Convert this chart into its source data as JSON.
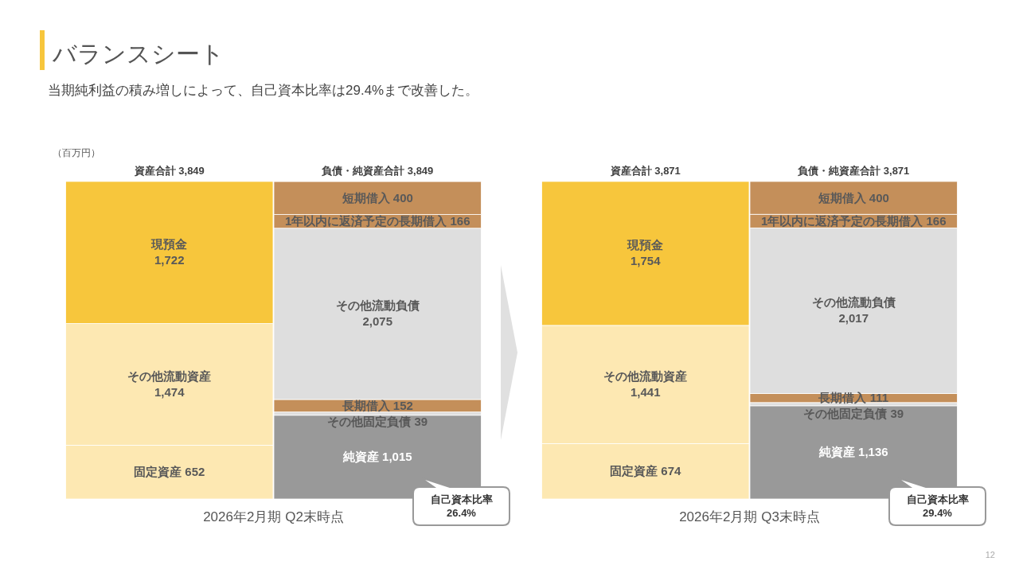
{
  "chart_data": [
    {
      "type": "bar",
      "stacked": true,
      "title": "バランスシート",
      "subtitle": "当期純利益の積み増しによって、自己資本比率は29.4%まで改善した。",
      "ylabel": "（百万円）",
      "xlabel": "2026年2月期 Q2末時点",
      "categories": [
        "資産合計 3,849",
        "負債・純資産合計 3,849"
      ],
      "series": [
        {
          "name": "固定資産",
          "color": "#fde8b2",
          "values": [
            652,
            null
          ],
          "value_labels": [
            "652",
            null
          ]
        },
        {
          "name": "その他流動資産",
          "color": "#fde8b2",
          "values": [
            1474,
            null
          ],
          "value_labels": [
            "1,474",
            null
          ]
        },
        {
          "name": "現預金",
          "color": "#f7c63c",
          "values": [
            1722,
            null
          ],
          "value_labels": [
            "1,722",
            null
          ]
        },
        {
          "name": "純資産",
          "color": "#999999",
          "values": [
            null,
            1015
          ],
          "value_labels": [
            null,
            "1,015"
          ]
        },
        {
          "name": "その他固定負債",
          "color": "#dedede",
          "values": [
            null,
            39
          ],
          "value_labels": [
            null,
            "39"
          ]
        },
        {
          "name": "長期借入",
          "color": "#c48f5a",
          "values": [
            null,
            152
          ],
          "value_labels": [
            null,
            "152"
          ]
        },
        {
          "name": "その他流動負債",
          "color": "#dedede",
          "values": [
            null,
            2075
          ],
          "value_labels": [
            null,
            "2,075"
          ]
        },
        {
          "name": "1年以内に返済予定の長期借入",
          "color": "#c48f5a",
          "values": [
            null,
            166
          ],
          "value_labels": [
            null,
            "166"
          ]
        },
        {
          "name": "短期借入",
          "color": "#c48f5a",
          "values": [
            null,
            400
          ],
          "value_labels": [
            null,
            "400"
          ]
        }
      ],
      "annotations": [
        "自己資本比率\n26.4%"
      ]
    },
    {
      "type": "bar",
      "stacked": true,
      "xlabel": "2026年2月期 Q3末時点",
      "categories": [
        "資産合計 3,871",
        "負債・純資産合計 3,871"
      ],
      "series": [
        {
          "name": "固定資産",
          "color": "#fde8b2",
          "values": [
            674,
            null
          ],
          "value_labels": [
            "674",
            null
          ]
        },
        {
          "name": "その他流動資産",
          "color": "#fde8b2",
          "values": [
            1441,
            null
          ],
          "value_labels": [
            "1,441",
            null
          ]
        },
        {
          "name": "現預金",
          "color": "#f7c63c",
          "values": [
            1754,
            null
          ],
          "value_labels": [
            "1,754",
            null
          ]
        },
        {
          "name": "純資産",
          "color": "#999999",
          "values": [
            null,
            1136
          ],
          "value_labels": [
            null,
            "1,136"
          ]
        },
        {
          "name": "その他固定負債",
          "color": "#dedede",
          "values": [
            null,
            39
          ],
          "value_labels": [
            null,
            "39"
          ]
        },
        {
          "name": "長期借入",
          "color": "#c48f5a",
          "values": [
            null,
            111
          ],
          "value_labels": [
            null,
            "111"
          ]
        },
        {
          "name": "その他流動負債",
          "color": "#dedede",
          "values": [
            null,
            2017
          ],
          "value_labels": [
            null,
            "2,017"
          ]
        },
        {
          "name": "1年以内に返済予定の長期借入",
          "color": "#c48f5a",
          "values": [
            null,
            166
          ],
          "value_labels": [
            null,
            "166"
          ]
        },
        {
          "name": "短期借入",
          "color": "#c48f5a",
          "values": [
            null,
            400
          ],
          "value_labels": [
            null,
            "400"
          ]
        }
      ],
      "annotations": [
        "自己資本比率\n29.4%",
        "12"
      ]
    }
  ]
}
